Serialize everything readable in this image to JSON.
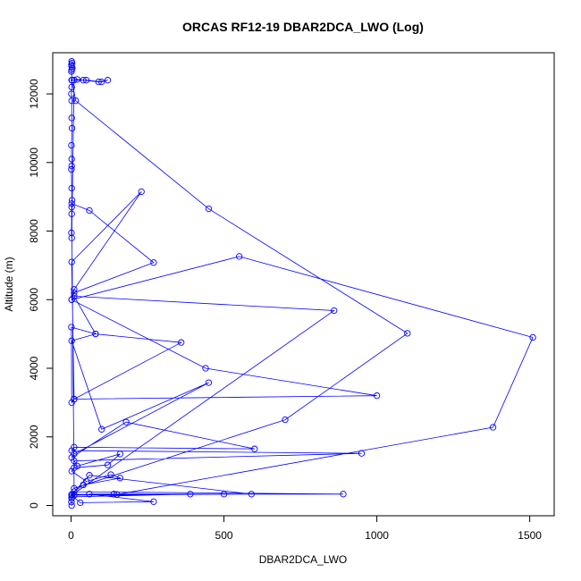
{
  "chart_data": {
    "type": "line",
    "title": "ORCAS RF12-19 DBAR2DCA_LWO (Log)",
    "xlabel": "DBAR2DCA_LWO",
    "ylabel": "Altitude (m)",
    "xlim": [
      -60,
      1580
    ],
    "ylim": [
      -300,
      13200
    ],
    "xticks": [
      0,
      500,
      1000,
      1500
    ],
    "yticks": [
      0,
      2000,
      4000,
      6000,
      8000,
      10000,
      12000
    ],
    "grid": false,
    "series_color": "#0000ff",
    "series": [
      {
        "x": [
          2,
          3,
          1,
          2,
          4,
          2,
          1,
          3,
          2,
          1,
          2,
          2,
          3,
          1,
          2,
          2,
          1,
          2,
          3,
          2,
          2,
          1,
          2,
          10,
          50,
          100,
          120,
          90,
          40,
          20,
          2,
          15,
          450,
          1100,
          700,
          10,
          2,
          60,
          270,
          10,
          2,
          550,
          1510,
          1380,
          150,
          2,
          860,
          10,
          80,
          360,
          10,
          2,
          230,
          10,
          2,
          440,
          1000,
          10,
          2,
          1,
          80,
          2,
          100,
          450,
          10,
          2,
          180,
          600,
          10,
          2,
          950,
          10,
          20,
          160,
          120,
          10,
          2,
          50,
          130,
          160,
          40,
          10,
          890,
          500,
          2,
          60,
          590,
          10,
          2,
          390,
          140,
          60,
          270,
          30,
          2,
          2,
          1,
          2
        ],
        "y": [
          12950,
          12900,
          12850,
          12800,
          12750,
          12700,
          12650,
          12400,
          12200,
          12000,
          11800,
          11300,
          11000,
          10500,
          10100,
          9900,
          9800,
          9250,
          8900,
          8700,
          8500,
          7950,
          7800,
          12400,
          12400,
          12350,
          12400,
          12350,
          12400,
          12420,
          12400,
          11800,
          8650,
          5020,
          2500,
          500,
          8800,
          8600,
          7080,
          6200,
          6000,
          7260,
          4900,
          2280,
          320,
          300,
          5680,
          6100,
          5000,
          4750,
          3100,
          7100,
          9150,
          6300,
          6000,
          4000,
          3200,
          3100,
          3000,
          5200,
          5000,
          4800,
          2220,
          3580,
          1500,
          1400,
          2430,
          1650,
          1700,
          1600,
          1520,
          1300,
          1150,
          1500,
          1180,
          1100,
          1000,
          700,
          900,
          800,
          600,
          400,
          330,
          330,
          320,
          880,
          330,
          300,
          250,
          330,
          330,
          330,
          110,
          80,
          300,
          200,
          100,
          0
        ]
      }
    ]
  }
}
